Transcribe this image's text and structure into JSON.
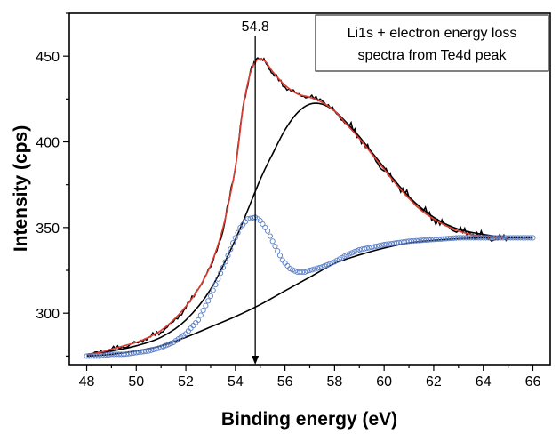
{
  "chart_data": {
    "type": "line",
    "title": "",
    "xlabel": "Binding energy (eV)",
    "ylabel": "Intensity (cps)",
    "xlim": [
      47.3,
      66.7
    ],
    "ylim": [
      270,
      475
    ],
    "xticks": [
      48,
      50,
      52,
      54,
      56,
      58,
      60,
      62,
      64,
      66
    ],
    "xticks_minor_step": 1,
    "yticks": [
      300,
      350,
      400,
      450
    ],
    "yticks_minor_step": 25,
    "grid": false,
    "legend_box": {
      "lines": [
        "Li1s + electron energy loss",
        "spectra from Te4d peak"
      ],
      "placement": "top-right"
    },
    "annotation": {
      "text": "54.8",
      "x": 54.8,
      "y_start": 462,
      "y_end": 270,
      "style": "vertical arrow"
    },
    "series": [
      {
        "role": "measured-spectrum",
        "color": "#000000",
        "style": "noisy line",
        "x": [
          48.0,
          48.5,
          49.0,
          49.5,
          50.0,
          50.5,
          51.0,
          51.5,
          52.0,
          52.5,
          53.0,
          53.5,
          54.0,
          54.3,
          54.6,
          54.9,
          55.2,
          55.5,
          56.0,
          56.5,
          57.0,
          57.5,
          58.0,
          58.5,
          59.0,
          59.5,
          60.0,
          60.5,
          61.0,
          61.5,
          62.0,
          62.5,
          63.0,
          63.5,
          64.0,
          64.5,
          65.0
        ],
        "y": [
          276,
          277,
          279,
          280,
          283,
          286,
          289,
          295,
          303,
          314,
          327,
          348,
          385,
          420,
          441,
          449,
          447,
          440,
          432,
          428,
          426,
          424,
          418,
          411,
          403,
          393,
          383,
          375,
          368,
          361,
          355,
          351,
          348,
          346,
          345,
          343,
          344
        ]
      },
      {
        "role": "fitted-envelope",
        "color": "#e03c31",
        "style": "smooth line",
        "x": [
          48.0,
          48.5,
          49.0,
          49.5,
          50.0,
          50.5,
          51.0,
          51.5,
          52.0,
          52.5,
          53.0,
          53.5,
          54.0,
          54.3,
          54.6,
          54.9,
          55.2,
          55.5,
          56.0,
          56.5,
          57.0,
          57.5,
          58.0,
          58.5,
          59.0,
          59.5,
          60.0,
          60.5,
          61.0,
          61.5,
          62.0,
          62.5,
          63.0,
          63.5,
          64.0,
          64.5,
          65.0
        ],
        "y": [
          276,
          277,
          279,
          281,
          283,
          286,
          290,
          296,
          304,
          314,
          328,
          350,
          385,
          419,
          440,
          448,
          447,
          441,
          433,
          428,
          426,
          423,
          418,
          410,
          402,
          393,
          384,
          375,
          367,
          360,
          355,
          351,
          348,
          346,
          345,
          344,
          344
        ]
      },
      {
        "role": "broad-component",
        "color": "#000000",
        "style": "smooth line",
        "x": [
          48.0,
          49.0,
          50.0,
          51.0,
          52.0,
          53.0,
          54.0,
          55.0,
          55.5,
          56.0,
          56.5,
          57.0,
          57.5,
          58.0,
          58.5,
          59.0,
          60.0,
          61.0,
          62.0,
          63.0,
          64.0,
          65.0
        ],
        "y": [
          276,
          278,
          281,
          286,
          296,
          314,
          343,
          378,
          393,
          407,
          417,
          422,
          422,
          418,
          411,
          403,
          385,
          368,
          356,
          349,
          346,
          344
        ]
      },
      {
        "role": "background",
        "color": "#000000",
        "style": "smooth line",
        "x": [
          48.0,
          49.0,
          50.0,
          51.0,
          52.0,
          53.0,
          54.0,
          55.0,
          56.0,
          57.0,
          58.0,
          59.0,
          60.0,
          61.0,
          62.0,
          63.0,
          64.0,
          65.0,
          66.0
        ],
        "y": [
          275,
          276,
          278,
          281,
          286,
          292,
          298,
          305,
          313,
          321,
          329,
          334,
          338,
          341,
          342.5,
          343.5,
          344,
          344,
          344
        ]
      },
      {
        "role": "peak-component",
        "color": "#5b7fc7",
        "style": "open circles",
        "x": [
          48.0,
          48.5,
          49.0,
          49.5,
          50.0,
          50.5,
          51.0,
          51.5,
          52.0,
          52.5,
          53.0,
          53.3,
          53.6,
          53.9,
          54.2,
          54.5,
          54.8,
          55.0,
          55.3,
          55.6,
          55.9,
          56.2,
          56.5,
          56.8,
          57.0,
          57.5,
          58.0,
          58.5,
          59.0,
          60.0,
          61.0,
          62.0,
          63.0,
          64.0,
          65.0,
          66.0
        ],
        "y": [
          275,
          275,
          276,
          276,
          277,
          278,
          280,
          283,
          288,
          296,
          310,
          320,
          330,
          341,
          350,
          355,
          356,
          354,
          348,
          339,
          331,
          326,
          324,
          324,
          325,
          327,
          330,
          334,
          337,
          340,
          342,
          343,
          344,
          344,
          344,
          344
        ]
      }
    ]
  }
}
